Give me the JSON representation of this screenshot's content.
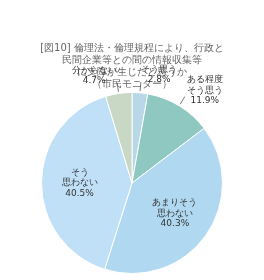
{
  "chart_data": {
    "type": "pie",
    "title": [
      "[図10] 倫理法・倫理規程により、行政と",
      "民間企業等との間の情報収集等",
      "に支障が生じたと思うか",
      "（市民モニター）"
    ],
    "categories": [
      "そう思う",
      "ある程度\nそう思う",
      "あまりそう\n思わない",
      "そう\n思わない",
      "分からない"
    ],
    "values": [
      2.8,
      11.9,
      40.3,
      40.5,
      4.7
    ],
    "value_labels": [
      "2.8%",
      "11.9%",
      "40.3%",
      "40.5%",
      "4.7%"
    ],
    "colors": [
      "#b8d8e8",
      "#8ec8c0",
      "#b0d8f0",
      "#c0e0f8",
      "#c8d8c4"
    ],
    "data_labels": true
  }
}
